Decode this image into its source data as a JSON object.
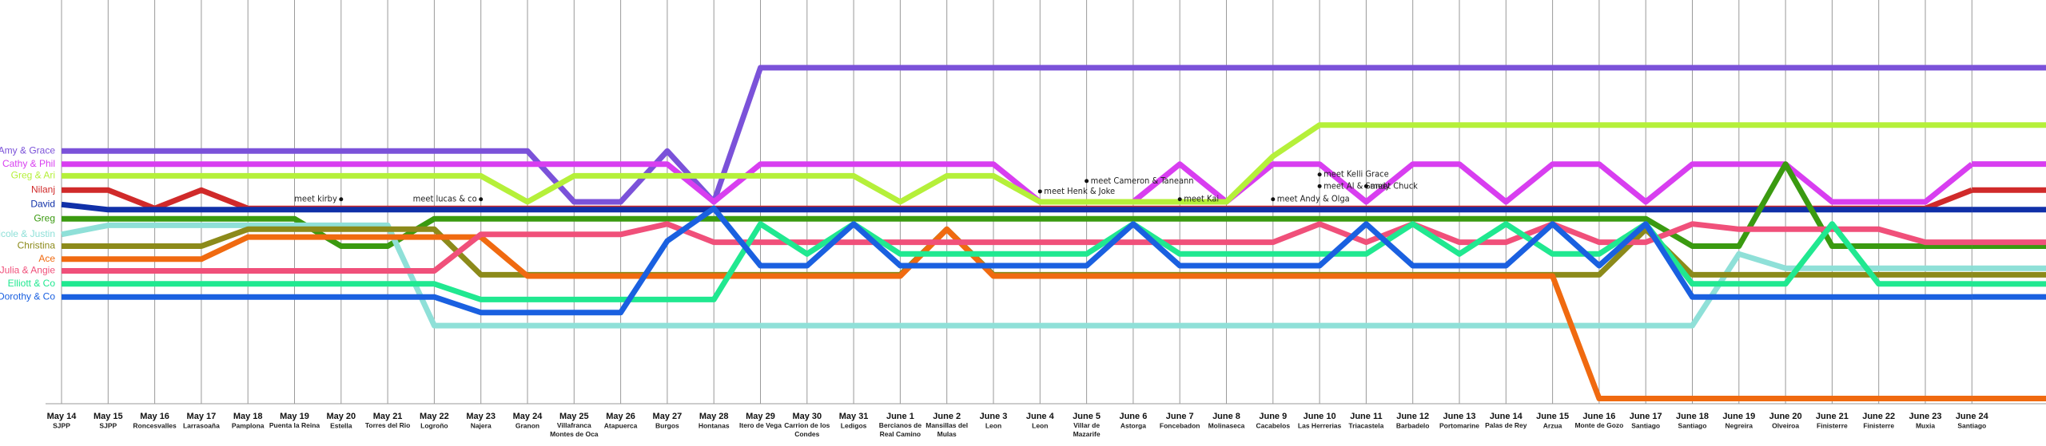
{
  "chart_data": {
    "type": "storyline",
    "categories": [
      "May 14",
      "May 15",
      "May 16",
      "May 17",
      "May 18",
      "May 19",
      "May 20",
      "May 21",
      "May 22",
      "May 23",
      "May 24",
      "May 25",
      "May 26",
      "May 27",
      "May 28",
      "May 29",
      "May 30",
      "May 31",
      "June 1",
      "June 2",
      "June 3",
      "June 4",
      "June 5",
      "June 6",
      "June 7",
      "June 8",
      "June 9",
      "June 10",
      "June 11",
      "June 12",
      "June 13",
      "June 14",
      "June 15",
      "June 16",
      "June 17",
      "June 18",
      "June 19",
      "June 20",
      "June 21",
      "June 22",
      "June 23",
      "June 24"
    ],
    "towns": [
      "SJPP",
      "SJPP",
      "Roncesvalles",
      "Larrasoaña",
      "Pamplona",
      "Puenta la Reina",
      "Estella",
      "Torres del Rio",
      "Logroño",
      "Najera",
      "Granon",
      "Villafranca Montes de Oca",
      "Atapuerca",
      "Burgos",
      "Hontanas",
      "Itero de Vega",
      "Carrion de los Condes",
      "Ledigos",
      "Bercianos de Real Camino",
      "Mansillas del Mulas",
      "Leon",
      "Leon",
      "Villar de Mazarife",
      "Astorga",
      "Foncebadon",
      "Molinaseca",
      "Cacabelos",
      "Las Herrerias",
      "Triacastela",
      "Barbadelo",
      "Portomarine",
      "Palas de Rey",
      "Arzua",
      "Monte de Gozo",
      "Santiago",
      "Santiago",
      "Negreira",
      "Olveiroa",
      "Finisterre",
      "Finisterre",
      "Muxia",
      "Santiago"
    ],
    "ylim": [
      0,
      310
    ],
    "series": [
      {
        "name": "Amy & Grace",
        "color": "#7b52d9",
        "values": [
          194,
          194,
          194,
          194,
          194,
          194,
          194,
          194,
          194,
          194,
          194,
          155,
          155,
          194,
          155,
          258,
          258,
          258,
          258,
          258,
          258,
          258,
          258,
          258,
          258,
          258,
          258,
          258,
          258,
          258,
          258,
          258,
          258,
          258,
          258,
          258,
          258,
          258,
          258,
          258,
          258,
          258
        ]
      },
      {
        "name": "Cathy & Phil",
        "color": "#d83ef0",
        "values": [
          184,
          184,
          184,
          184,
          184,
          184,
          184,
          184,
          184,
          184,
          184,
          184,
          184,
          184,
          155,
          184,
          184,
          184,
          184,
          184,
          184,
          155,
          155,
          155,
          184,
          155,
          184,
          184,
          155,
          184,
          184,
          155,
          184,
          184,
          155,
          184,
          184,
          184,
          155,
          155,
          155,
          184
        ]
      },
      {
        "name": "Greg & Ari",
        "color": "#b5f03a",
        "values": [
          175,
          175,
          175,
          175,
          175,
          175,
          175,
          175,
          175,
          175,
          155,
          175,
          175,
          175,
          175,
          175,
          175,
          175,
          155,
          175,
          175,
          155,
          155,
          155,
          155,
          155,
          190,
          214,
          214,
          214,
          214,
          214,
          214,
          214,
          214,
          214,
          214,
          214,
          214,
          214,
          214,
          214
        ]
      },
      {
        "name": "Nilanj",
        "color": "#d02a2a",
        "values": [
          164,
          164,
          150,
          164,
          150,
          150,
          150,
          150,
          150,
          150,
          150,
          150,
          150,
          150,
          150,
          150,
          150,
          150,
          150,
          150,
          150,
          150,
          150,
          150,
          150,
          150,
          150,
          150,
          150,
          150,
          150,
          150,
          150,
          150,
          150,
          150,
          150,
          150,
          150,
          150,
          150,
          164
        ]
      },
      {
        "name": "David",
        "color": "#1030a8",
        "values": [
          153,
          149,
          149,
          149,
          149,
          149,
          149,
          149,
          149,
          149,
          149,
          149,
          149,
          149,
          149,
          149,
          149,
          149,
          149,
          149,
          149,
          149,
          149,
          149,
          149,
          149,
          149,
          149,
          149,
          149,
          149,
          149,
          149,
          149,
          149,
          149,
          149,
          149,
          149,
          149,
          149,
          149
        ]
      },
      {
        "name": "Greg",
        "color": "#3a9a10",
        "values": [
          142,
          142,
          142,
          142,
          142,
          142,
          121,
          121,
          142,
          142,
          142,
          142,
          142,
          142,
          142,
          142,
          142,
          142,
          142,
          142,
          142,
          142,
          142,
          142,
          142,
          142,
          142,
          142,
          142,
          142,
          142,
          142,
          142,
          142,
          142,
          121,
          121,
          184,
          121,
          121,
          121,
          121
        ]
      },
      {
        "name": "Nicole & Justin",
        "color": "#8fe0d8",
        "values": [
          130,
          137,
          137,
          137,
          137,
          137,
          137,
          137,
          60,
          60,
          60,
          60,
          60,
          60,
          60,
          60,
          60,
          60,
          60,
          60,
          60,
          60,
          60,
          60,
          60,
          60,
          60,
          60,
          60,
          60,
          60,
          60,
          60,
          60,
          60,
          60,
          115,
          104,
          104,
          104,
          104,
          104
        ]
      },
      {
        "name": "Christina",
        "color": "#8c8a1a",
        "values": [
          121,
          121,
          121,
          121,
          134,
          134,
          134,
          134,
          134,
          99,
          99,
          99,
          99,
          99,
          99,
          99,
          99,
          99,
          99,
          134,
          99,
          99,
          99,
          99,
          99,
          99,
          99,
          99,
          99,
          99,
          99,
          99,
          99,
          99,
          134,
          99,
          99,
          99,
          99,
          99,
          99,
          99
        ]
      },
      {
        "name": "Ace",
        "color": "#f06a10",
        "values": [
          111,
          111,
          111,
          111,
          128,
          128,
          128,
          128,
          128,
          128,
          98,
          98,
          98,
          98,
          98,
          98,
          98,
          98,
          98,
          134,
          98,
          98,
          98,
          98,
          98,
          98,
          98,
          98,
          98,
          98,
          98,
          98,
          98,
          4,
          4,
          4,
          4,
          4,
          4,
          4,
          4,
          4
        ]
      },
      {
        "name": "Julia & Angie",
        "color": "#f0507a",
        "values": [
          102,
          102,
          102,
          102,
          102,
          102,
          102,
          102,
          102,
          130,
          130,
          130,
          130,
          138,
          124,
          124,
          124,
          124,
          124,
          124,
          124,
          124,
          124,
          124,
          124,
          124,
          124,
          138,
          124,
          138,
          124,
          124,
          138,
          124,
          124,
          138,
          134,
          134,
          134,
          134,
          124,
          124
        ]
      },
      {
        "name": "Elliott & Co",
        "color": "#20e890",
        "values": [
          92,
          92,
          92,
          92,
          92,
          92,
          92,
          92,
          92,
          80,
          80,
          80,
          80,
          80,
          80,
          138,
          115,
          138,
          115,
          115,
          115,
          115,
          115,
          138,
          115,
          115,
          115,
          115,
          115,
          138,
          115,
          138,
          115,
          115,
          138,
          92,
          92,
          92,
          138,
          92,
          92,
          92
        ]
      },
      {
        "name": "Dorothy & Co",
        "color": "#1a60e0",
        "values": [
          82,
          82,
          82,
          82,
          82,
          82,
          82,
          82,
          82,
          70,
          70,
          70,
          70,
          125,
          150,
          106,
          106,
          138,
          106,
          106,
          106,
          106,
          106,
          138,
          106,
          106,
          106,
          106,
          138,
          106,
          106,
          106,
          138,
          106,
          138,
          82,
          82,
          82,
          82,
          82,
          82,
          82
        ]
      }
    ],
    "annotations": [
      {
        "text": "meet kirby",
        "at": "May 20",
        "y": 157
      },
      {
        "text": "meet lucas & co",
        "at": "May 23",
        "y": 157
      },
      {
        "text": "meet Henk & Joke",
        "at": "June 4",
        "y": 163
      },
      {
        "text": "meet Cameron & Taneann",
        "at": "June 5",
        "y": 171
      },
      {
        "text": "meet Kai",
        "at": "June 7",
        "y": 157
      },
      {
        "text": "meet Al & Sandy",
        "at": "June 10",
        "y": 167
      },
      {
        "text": "meet Andy & Olga",
        "at": "June 9",
        "y": 157
      },
      {
        "text": "meet Kelli Grace",
        "at": "June 10",
        "y": 176
      },
      {
        "text": "meet Chuck",
        "at": "June 11",
        "y": 167
      }
    ]
  }
}
